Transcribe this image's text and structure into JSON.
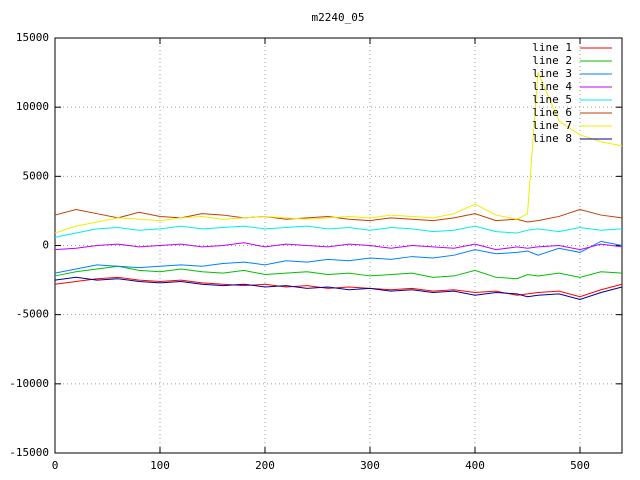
{
  "chart_data": {
    "type": "line",
    "title": "m2240_05",
    "x": [
      0,
      20,
      40,
      60,
      80,
      100,
      120,
      140,
      160,
      180,
      200,
      220,
      240,
      260,
      280,
      300,
      320,
      340,
      360,
      380,
      400,
      420,
      440,
      450,
      460,
      480,
      500,
      520,
      540
    ],
    "xlim": [
      0,
      540
    ],
    "xticks": [
      0,
      100,
      200,
      300,
      400,
      500
    ],
    "ylim": [
      -15000,
      15000
    ],
    "yticks": [
      -15000,
      -10000,
      -5000,
      0,
      5000,
      10000,
      15000
    ],
    "grid": true,
    "legend": "top-right",
    "series": [
      {
        "name": "line 1",
        "color": "#ff0000",
        "values": [
          -2800,
          -2600,
          -2400,
          -2300,
          -2500,
          -2600,
          -2500,
          -2700,
          -2800,
          -2900,
          -2800,
          -3000,
          -2900,
          -3100,
          -3000,
          -3100,
          -3200,
          -3100,
          -3300,
          -3200,
          -3400,
          -3300,
          -3600,
          -3500,
          -3400,
          -3300,
          -3700,
          -3200,
          -2800
        ]
      },
      {
        "name": "line 2",
        "color": "#00c000",
        "values": [
          -2200,
          -1900,
          -1700,
          -1500,
          -1800,
          -1900,
          -1700,
          -1900,
          -2000,
          -1800,
          -2100,
          -2000,
          -1900,
          -2100,
          -2000,
          -2200,
          -2100,
          -2000,
          -2300,
          -2200,
          -1800,
          -2300,
          -2400,
          -2100,
          -2200,
          -2000,
          -2300,
          -1900,
          -2000
        ]
      },
      {
        "name": "line 3",
        "color": "#0080ff",
        "values": [
          -2000,
          -1700,
          -1400,
          -1500,
          -1600,
          -1500,
          -1400,
          -1500,
          -1300,
          -1200,
          -1400,
          -1100,
          -1200,
          -1000,
          -1100,
          -900,
          -1000,
          -800,
          -900,
          -700,
          -300,
          -600,
          -500,
          -400,
          -700,
          -200,
          -500,
          300,
          0
        ]
      },
      {
        "name": "line 4",
        "color": "#c000ff",
        "values": [
          -300,
          -200,
          0,
          100,
          -100,
          0,
          100,
          -100,
          0,
          200,
          -100,
          100,
          0,
          -100,
          100,
          0,
          -200,
          0,
          -100,
          -200,
          100,
          -300,
          -100,
          -200,
          -100,
          0,
          -300,
          100,
          -100
        ]
      },
      {
        "name": "line 5",
        "color": "#00eeee",
        "values": [
          600,
          900,
          1200,
          1300,
          1100,
          1200,
          1400,
          1200,
          1300,
          1400,
          1200,
          1300,
          1400,
          1200,
          1300,
          1100,
          1300,
          1200,
          1000,
          1100,
          1400,
          1000,
          900,
          1100,
          1200,
          1000,
          1300,
          1100,
          1200
        ]
      },
      {
        "name": "line 6",
        "color": "#c04000",
        "values": [
          2200,
          2600,
          2300,
          2000,
          2400,
          2100,
          2000,
          2300,
          2200,
          2000,
          2100,
          1900,
          2000,
          2100,
          1900,
          1800,
          2000,
          1900,
          1800,
          2000,
          2300,
          1800,
          1900,
          1700,
          1800,
          2100,
          2600,
          2200,
          2000
        ]
      },
      {
        "name": "line 7",
        "color": "#eeee00",
        "values": [
          900,
          1400,
          1700,
          2000,
          1900,
          1800,
          2000,
          2100,
          1900,
          2000,
          2100,
          2000,
          1900,
          2000,
          2100,
          2000,
          2200,
          2100,
          2000,
          2300,
          3000,
          2200,
          1900,
          2300,
          12500,
          9000,
          8000,
          7500,
          7200
        ]
      },
      {
        "name": "line 8",
        "color": "#0000a0",
        "values": [
          -2500,
          -2300,
          -2500,
          -2400,
          -2600,
          -2700,
          -2600,
          -2800,
          -2900,
          -2800,
          -3000,
          -2900,
          -3100,
          -3000,
          -3200,
          -3100,
          -3300,
          -3200,
          -3400,
          -3300,
          -3600,
          -3400,
          -3500,
          -3700,
          -3600,
          -3500,
          -3900,
          -3400,
          -3000
        ]
      }
    ]
  }
}
